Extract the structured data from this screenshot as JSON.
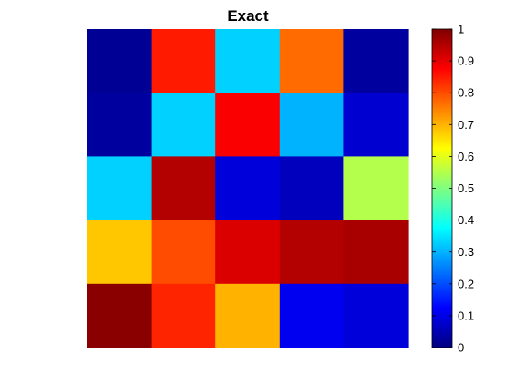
{
  "chart_data": {
    "type": "heatmap",
    "title": "Exact",
    "xlabel": "",
    "ylabel": "",
    "colormap": "jet",
    "clim": [
      0,
      1
    ],
    "colorbar": {
      "position": "right",
      "ticks": [
        0,
        0.1,
        0.2,
        0.3,
        0.4,
        0.5,
        0.6,
        0.7,
        0.8,
        0.9,
        1
      ],
      "tick_labels": [
        "0",
        "0.1",
        "0.2",
        "0.3",
        "0.4",
        "0.5",
        "0.6",
        "0.7",
        "0.8",
        "0.9",
        "1"
      ]
    },
    "axes_visible": false,
    "rows": 5,
    "cols": 5,
    "values": [
      [
        0.02,
        0.85,
        0.33,
        0.77,
        0.03
      ],
      [
        0.03,
        0.33,
        0.88,
        0.3,
        0.08
      ],
      [
        0.33,
        0.95,
        0.09,
        0.06,
        0.55
      ],
      [
        0.68,
        0.8,
        0.91,
        0.95,
        0.96
      ],
      [
        0.99,
        0.84,
        0.7,
        0.11,
        0.09
      ]
    ]
  }
}
